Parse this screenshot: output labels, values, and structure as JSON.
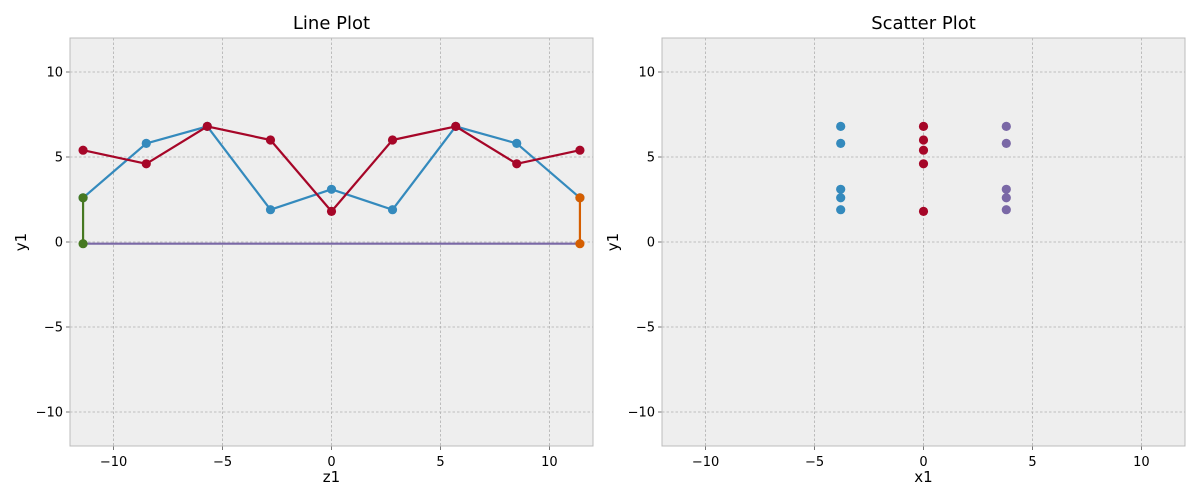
{
  "colors": {
    "blue": "#348abd",
    "red": "#a60628",
    "purple": "#7a68a6",
    "green": "#467821",
    "orange": "#d55e00",
    "axes_bg": "#eeeeee",
    "grid": "#b0b0b0"
  },
  "chart_data": [
    {
      "type": "line",
      "title": "Line Plot",
      "xlabel": "z1",
      "ylabel": "y1",
      "xlim": [
        -12,
        12
      ],
      "ylim": [
        -12,
        12
      ],
      "xticks": [
        -10,
        -5,
        0,
        5,
        10
      ],
      "yticks": [
        -10,
        -5,
        0,
        5,
        10
      ],
      "xtick_labels": [
        "−10",
        "−5",
        "0",
        "5",
        "10"
      ],
      "ytick_labels": [
        "−10",
        "−5",
        "0",
        "5",
        "10"
      ],
      "grid": true,
      "series": [
        {
          "color": "blue",
          "x": [
            -11.4,
            -8.5,
            -5.7,
            -2.8,
            0,
            2.8,
            5.7,
            8.5,
            11.4
          ],
          "y": [
            2.6,
            5.8,
            6.8,
            1.9,
            3.1,
            1.9,
            6.8,
            5.8,
            2.6
          ]
        },
        {
          "color": "red",
          "x": [
            -11.4,
            -8.5,
            -5.7,
            -2.8,
            0,
            2.8,
            5.7,
            8.5,
            11.4
          ],
          "y": [
            5.4,
            4.6,
            6.8,
            6.0,
            1.8,
            6.0,
            6.8,
            4.6,
            5.4
          ]
        },
        {
          "color": "purple",
          "x": [
            -11.4,
            11.4
          ],
          "y": [
            -0.1,
            -0.1
          ],
          "markers": false
        },
        {
          "color": "green",
          "x": [
            -11.4,
            -11.4
          ],
          "y": [
            2.6,
            -0.1
          ]
        },
        {
          "color": "orange",
          "x": [
            11.4,
            11.4
          ],
          "y": [
            2.6,
            -0.1
          ]
        }
      ]
    },
    {
      "type": "scatter",
      "title": "Scatter Plot",
      "xlabel": "x1",
      "ylabel": "y1",
      "xlim": [
        -12,
        12
      ],
      "ylim": [
        -12,
        12
      ],
      "xticks": [
        -10,
        -5,
        0,
        5,
        10
      ],
      "yticks": [
        -10,
        -5,
        0,
        5,
        10
      ],
      "xtick_labels": [
        "−10",
        "−5",
        "0",
        "5",
        "10"
      ],
      "ytick_labels": [
        "−10",
        "−5",
        "0",
        "5",
        "10"
      ],
      "grid": true,
      "series": [
        {
          "color": "blue",
          "x": [
            -3.8,
            -3.8,
            -3.8,
            -3.8,
            -3.8
          ],
          "y": [
            6.8,
            5.8,
            3.1,
            2.6,
            1.9
          ]
        },
        {
          "color": "red",
          "x": [
            0,
            0,
            0,
            0,
            0
          ],
          "y": [
            6.8,
            6.0,
            5.4,
            4.6,
            1.8
          ]
        },
        {
          "color": "purple",
          "x": [
            3.8,
            3.8,
            3.8,
            3.8,
            3.8
          ],
          "y": [
            6.8,
            5.8,
            3.1,
            2.6,
            1.9
          ]
        }
      ]
    }
  ]
}
